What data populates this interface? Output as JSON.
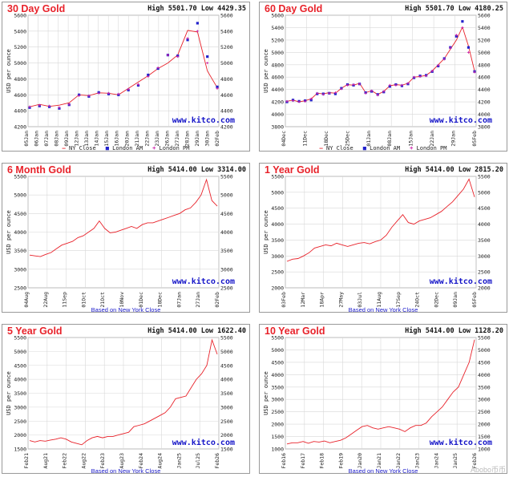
{
  "watermark": "kitco",
  "wm_text": "www.kitco.com",
  "corner_text": "Abobo币币",
  "legend": {
    "close": "NY Close",
    "am": "London AM",
    "pm": "London PM"
  },
  "based_on": "Based on New York Close",
  "ylabel": "USD per ounce",
  "colors": {
    "line": "#e8222a",
    "am": "#2222cc",
    "pm": "#cc22aa",
    "grid": "#d8d8d8",
    "title": "#e8222a"
  },
  "chart_data": [
    {
      "id": "30day",
      "title": "30 Day Gold",
      "high_low": "High 5501.70 Low 4429.35",
      "type": "line",
      "ylim": [
        4200,
        5600
      ],
      "yticks": [
        "4200",
        "4400",
        "4600",
        "4800",
        "5000",
        "5200",
        "5400",
        "5600"
      ],
      "xlabels": [
        "05Jan",
        "06Jan",
        "07Jan",
        "08Jan",
        "09Jan",
        "12Jan",
        "13Jan",
        "14Jan",
        "15Jan",
        "16Jan",
        "20Jan",
        "21Jan",
        "22Jan",
        "23Jan",
        "26Jan",
        "27Jan",
        "28Jan",
        "29Jan",
        "30Jan",
        "02Feb"
      ],
      "x": [
        0,
        1,
        2,
        3,
        4,
        5,
        6,
        7,
        8,
        9,
        10,
        11,
        12,
        13,
        14,
        15,
        16,
        17,
        18,
        19
      ],
      "close": [
        4450,
        4480,
        4455,
        4470,
        4500,
        4600,
        4590,
        4625,
        4620,
        4600,
        4680,
        4760,
        4840,
        4930,
        5000,
        5100,
        5410,
        5390,
        4900,
        4690
      ],
      "am": [
        4440,
        4460,
        4450,
        4430,
        4475,
        4600,
        4580,
        4630,
        4610,
        4600,
        4660,
        4720,
        4850,
        4930,
        5100,
        5090,
        5290,
        5500,
        5080,
        4700
      ],
      "pm": [
        4450,
        4470,
        4460,
        4440,
        4480,
        4590,
        4590,
        4620,
        4620,
        4610,
        4670,
        4730,
        4830,
        4940,
        5100,
        5080,
        5310,
        5400,
        5000,
        4680
      ],
      "legend_kind": "am_pm_am"
    },
    {
      "id": "60day",
      "title": "60 Day Gold",
      "high_low": "High 5501.70 Low 4180.25",
      "type": "line",
      "ylim": [
        3800,
        5600
      ],
      "yticks": [
        "3800",
        "4000",
        "4200",
        "4400",
        "4600",
        "4800",
        "5000",
        "5200",
        "5400",
        "5600"
      ],
      "xlabels": [
        "04Dec",
        "11Dec",
        "18Dec",
        "25Dec",
        "01Jan",
        "08Jan",
        "15Jan",
        "22Jan",
        "29Jan",
        "05Feb"
      ],
      "close": [
        4210,
        4230,
        4200,
        4220,
        4250,
        4340,
        4330,
        4350,
        4340,
        4420,
        4480,
        4470,
        4500,
        4350,
        4380,
        4320,
        4370,
        4460,
        4480,
        4470,
        4500,
        4600,
        4610,
        4630,
        4700,
        4800,
        4900,
        5050,
        5200,
        5410,
        5100,
        4700
      ],
      "am": [
        4200,
        4230,
        4210,
        4220,
        4230,
        4330,
        4330,
        4340,
        4330,
        4420,
        4480,
        4470,
        4490,
        4350,
        4370,
        4320,
        4360,
        4450,
        4480,
        4460,
        4490,
        4590,
        4620,
        4630,
        4690,
        4780,
        4900,
        5080,
        5260,
        5500,
        5080,
        4690
      ],
      "pm": [
        4210,
        4220,
        4200,
        4210,
        4250,
        4340,
        4320,
        4340,
        4350,
        4410,
        4470,
        4480,
        4490,
        4340,
        4380,
        4310,
        4370,
        4470,
        4470,
        4470,
        4500,
        4600,
        4610,
        4620,
        4700,
        4790,
        4890,
        5070,
        5280,
        5400,
        5000,
        4680
      ],
      "legend_kind": "close_am_pm"
    },
    {
      "id": "6month",
      "title": "6 Month Gold",
      "high_low": "High 5414.00 Low 3314.00",
      "type": "line",
      "ylim": [
        2500,
        5500
      ],
      "yticks": [
        "2500",
        "3000",
        "3500",
        "4000",
        "4500",
        "5000",
        "5500"
      ],
      "xlabels": [
        "04Aug",
        "22Aug",
        "11Sep",
        "01Oct",
        "21Oct",
        "10Nov",
        "01Dec",
        "18Dec",
        "07Jan",
        "27Jan",
        "02Feb"
      ],
      "close": [
        3380,
        3360,
        3340,
        3400,
        3450,
        3550,
        3650,
        3700,
        3750,
        3850,
        3900,
        4000,
        4100,
        4300,
        4100,
        3980,
        4000,
        4050,
        4100,
        4150,
        4100,
        4200,
        4250,
        4250,
        4300,
        4350,
        4400,
        4450,
        4500,
        4600,
        4650,
        4800,
        5000,
        5414,
        4850,
        4700
      ]
    },
    {
      "id": "1year",
      "title": "1 Year Gold",
      "high_low": "High 5414.00 Low 2815.20",
      "type": "line",
      "ylim": [
        2000,
        5500
      ],
      "yticks": [
        "2000",
        "2500",
        "3000",
        "3500",
        "4000",
        "4500",
        "5000",
        "5500"
      ],
      "xlabels": [
        "03Feb",
        "12Mar",
        "18Apr",
        "27May",
        "03Jul",
        "11Aug",
        "17Sep",
        "24Oct",
        "02Dec",
        "09Jan",
        "05Feb"
      ],
      "close": [
        2830,
        2900,
        2920,
        3000,
        3100,
        3250,
        3300,
        3350,
        3320,
        3400,
        3350,
        3300,
        3350,
        3400,
        3420,
        3380,
        3450,
        3500,
        3650,
        3900,
        4100,
        4300,
        4050,
        4000,
        4100,
        4150,
        4200,
        4300,
        4400,
        4550,
        4700,
        4900,
        5100,
        5414,
        4850
      ]
    },
    {
      "id": "5year",
      "title": "5 Year Gold",
      "high_low": "High 5414.00 Low 1622.40",
      "type": "line",
      "ylim": [
        1500,
        5500
      ],
      "yticks": [
        "1500",
        "2000",
        "2500",
        "3000",
        "3500",
        "4000",
        "4500",
        "5000",
        "5500"
      ],
      "xlabels": [
        "Feb21",
        "Aug21",
        "Feb22",
        "Aug22",
        "Feb23",
        "Aug23",
        "Feb24",
        "Aug24",
        "Jan25",
        "Jul25",
        "Feb26"
      ],
      "close": [
        1800,
        1750,
        1800,
        1780,
        1820,
        1850,
        1900,
        1850,
        1750,
        1700,
        1650,
        1800,
        1900,
        1950,
        1900,
        1950,
        1950,
        2000,
        2050,
        2100,
        2300,
        2350,
        2400,
        2500,
        2600,
        2700,
        2800,
        3000,
        3300,
        3350,
        3400,
        3700,
        4000,
        4200,
        4500,
        5414,
        4900
      ]
    },
    {
      "id": "10year",
      "title": "10 Year Gold",
      "high_low": "High 5414.00 Low 1128.20",
      "type": "line",
      "ylim": [
        1000,
        5500
      ],
      "yticks": [
        "1000",
        "1500",
        "2000",
        "2500",
        "3000",
        "3500",
        "4000",
        "4500",
        "5000",
        "5500"
      ],
      "xlabels": [
        "Feb16",
        "Feb17",
        "Feb18",
        "Feb19",
        "Jan20",
        "Jan21",
        "Jan22",
        "Jan23",
        "Jan24",
        "Jan25",
        "Feb26"
      ],
      "close": [
        1200,
        1250,
        1250,
        1300,
        1230,
        1300,
        1280,
        1320,
        1250,
        1300,
        1350,
        1450,
        1600,
        1750,
        1900,
        1950,
        1850,
        1800,
        1850,
        1900,
        1850,
        1800,
        1700,
        1850,
        1950,
        1950,
        2050,
        2300,
        2500,
        2700,
        3000,
        3300,
        3500,
        4000,
        4500,
        5414
      ]
    }
  ]
}
